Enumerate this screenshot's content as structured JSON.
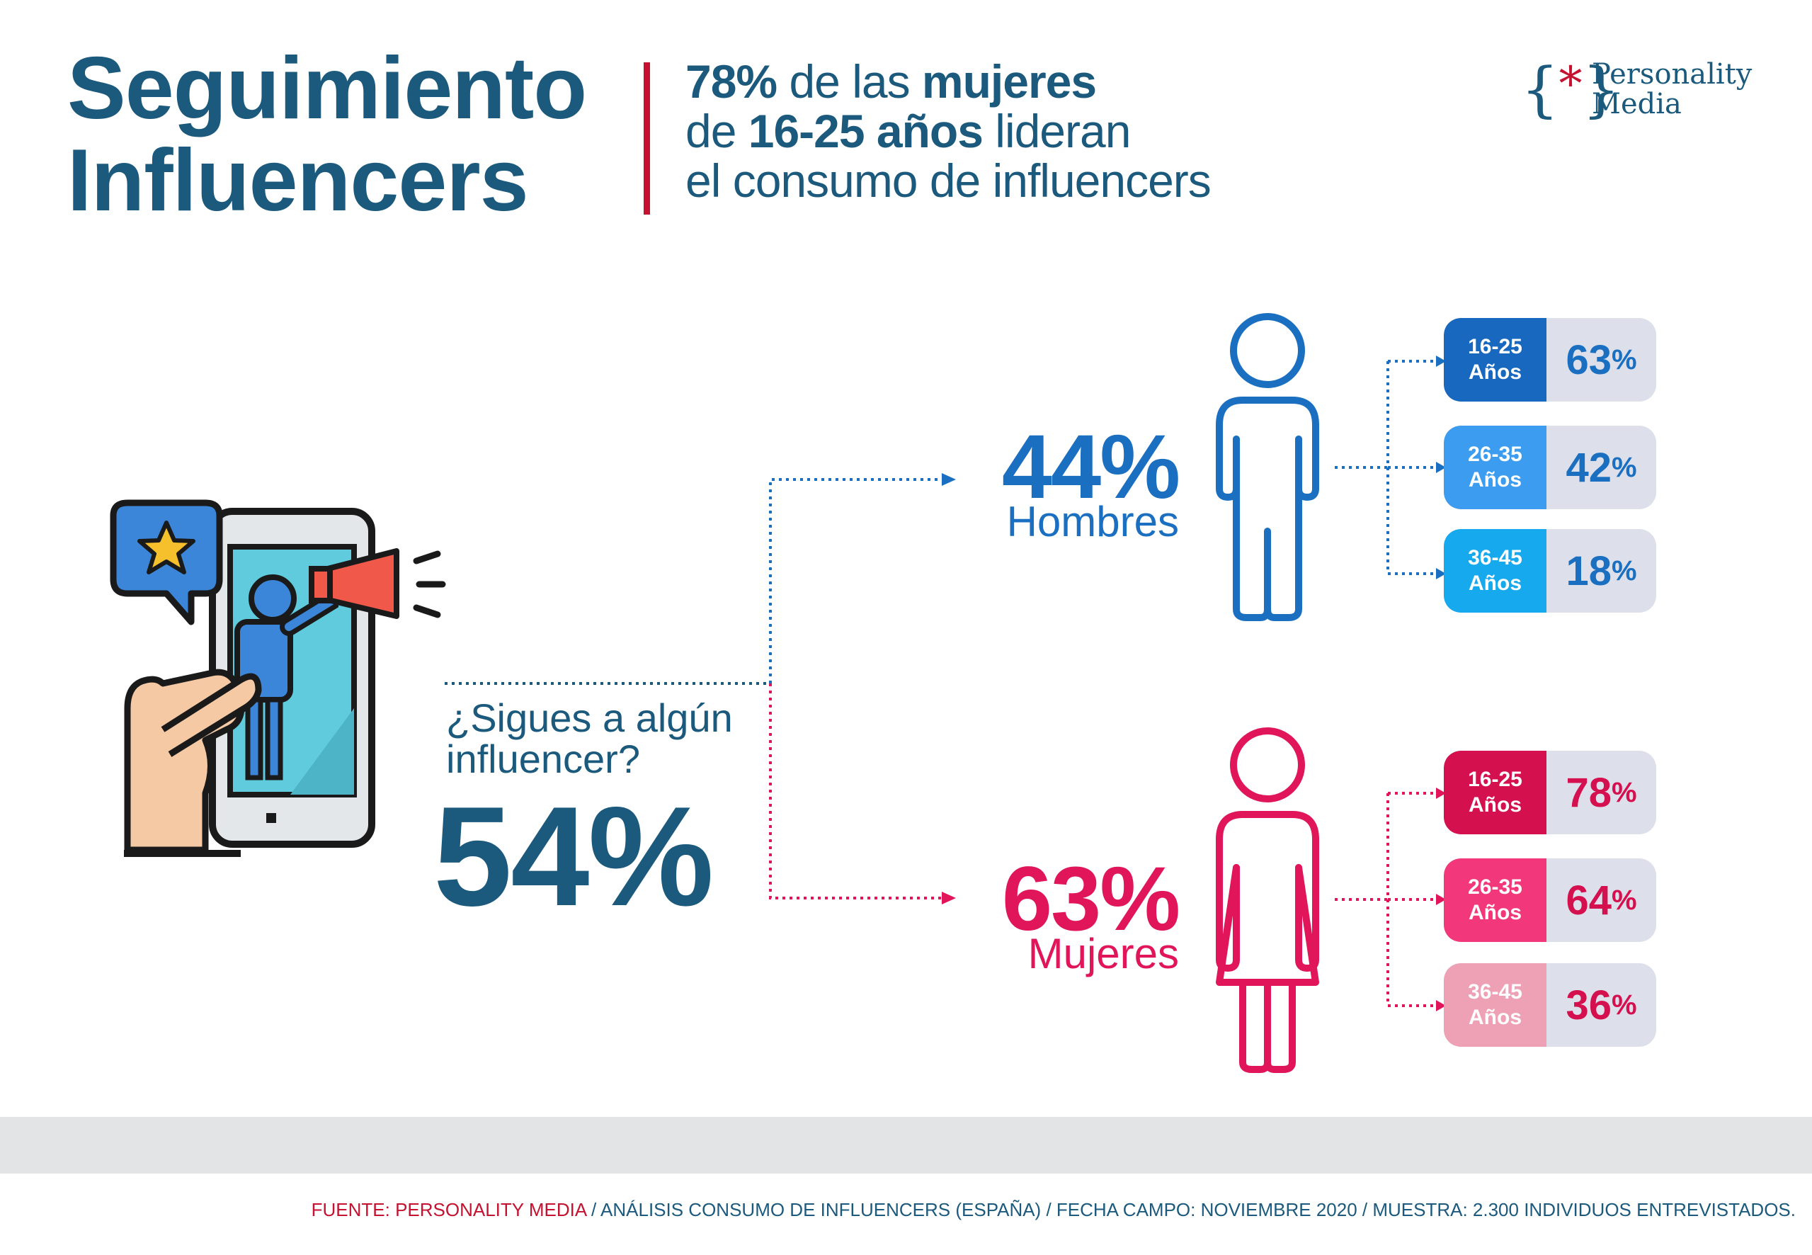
{
  "header": {
    "title_line1": "Seguimiento",
    "title_line2": "Influencers",
    "subtitle": {
      "l1_bold": "78%",
      "l1_text": " de las ",
      "l1_bold2": "mujeres",
      "l2_text": "de ",
      "l2_bold": "16-25 años",
      "l2_text2": " lideran",
      "l3_text": "el consumo de influencers"
    }
  },
  "logo": {
    "line1": "Personality",
    "line2": "Media",
    "brace_open": "{",
    "brace_star": "*",
    "brace_close": "}"
  },
  "survey": {
    "question_line1": "¿Sigues a algún",
    "question_line2": "influencer?",
    "total": "54%"
  },
  "men": {
    "pct": "44%",
    "label": "Hombres",
    "ages": [
      {
        "line1": "16-25",
        "line2": "Años",
        "value": "63",
        "unit": "%"
      },
      {
        "line1": "26-35",
        "line2": "Años",
        "value": "42",
        "unit": "%"
      },
      {
        "line1": "36-45",
        "line2": "Años",
        "value": "18",
        "unit": "%"
      }
    ]
  },
  "women": {
    "pct": "63%",
    "label": "Mujeres",
    "ages": [
      {
        "line1": "16-25",
        "line2": "Años",
        "value": "78",
        "unit": "%"
      },
      {
        "line1": "26-35",
        "line2": "Años",
        "value": "64",
        "unit": "%"
      },
      {
        "line1": "36-45",
        "line2": "Años",
        "value": "36",
        "unit": "%"
      }
    ]
  },
  "footer": {
    "brand": "FUENTE: PERSONALITY MEDIA",
    "rest": " / ANÁLISIS CONSUMO DE INFLUENCERS (ESPAÑA) / FECHA CAMPO: NOVIEMBRE 2020 / MUESTRA: 2.300 INDIVIDUOS ENTREVISTADOS."
  },
  "colors": {
    "navy": "#1c5a7d",
    "men_blue": "#1a6fc0",
    "women_red": "#e0155a",
    "accent_red": "#c41230",
    "men_age_1": "#1768be",
    "men_age_2": "#3b9cf0",
    "men_age_3": "#17a9ee",
    "women_age_1": "#d4104e",
    "women_age_2": "#f2387a",
    "women_age_3": "#eea0b4"
  },
  "icons": [
    "influencer-phone-icon",
    "male-figure-icon",
    "female-figure-icon",
    "star-icon",
    "megaphone-icon"
  ]
}
